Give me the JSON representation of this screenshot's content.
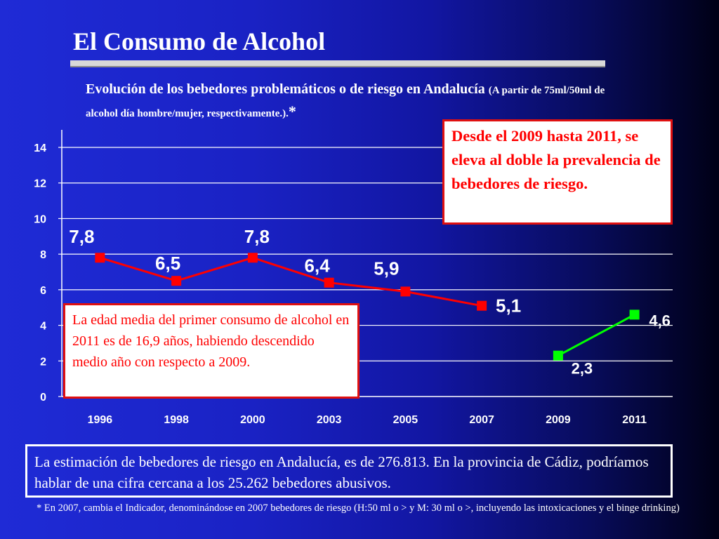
{
  "slide": {
    "title": "El Consumo de Alcohol",
    "subtitle_main": "Evolución de los bebedores problemáticos o de riesgo en Andalucía ",
    "subtitle_paren": "(A partir de 75ml/50ml de alcohol día hombre/mujer, respectivamente.).",
    "subtitle_star": "*",
    "callout_top": "Desde el 2009 hasta 2011, se eleva al doble la prevalencia de bebedores de riesgo.",
    "callout_left": "La edad media del primer consumo de alcohol en 2011 es de 16,9 años, habiendo descendido medio año con respecto a 2009.",
    "estimate_text": "La estimación de bebedores de riesgo en Andalucía, es de 276.813. En la provincia de Cádiz, podríamos hablar de una cifra cercana a los 25.262 bebedores abusivos.",
    "footnote": "* En 2007, cambia el Indicador, denominándose en 2007 bebedores de riesgo (H:50 ml o > y M: 30 ml o >, incluyendo las intoxicaciones y el binge drinking)"
  },
  "chart_data": {
    "type": "line",
    "categories": [
      "1996",
      "1998",
      "2000",
      "2003",
      "2005",
      "2007",
      "2009",
      "2011"
    ],
    "ylim": [
      0,
      14
    ],
    "yticks": [
      "0",
      "2",
      "4",
      "6",
      "8",
      "10",
      "12",
      "14"
    ],
    "grid": true,
    "series": [
      {
        "color": "#ff0000",
        "values": [
          7.8,
          6.5,
          7.8,
          6.4,
          5.9,
          5.1,
          null,
          null
        ],
        "labels": [
          "7,8",
          "6,5",
          "7,8",
          "6,4",
          "5,9",
          "5,1",
          "",
          ""
        ]
      },
      {
        "color": "#00ff00",
        "values": [
          null,
          null,
          null,
          null,
          null,
          null,
          2.3,
          4.6
        ],
        "labels": [
          "",
          "",
          "",
          "",
          "",
          "",
          "2,3",
          "4,6"
        ]
      }
    ]
  }
}
